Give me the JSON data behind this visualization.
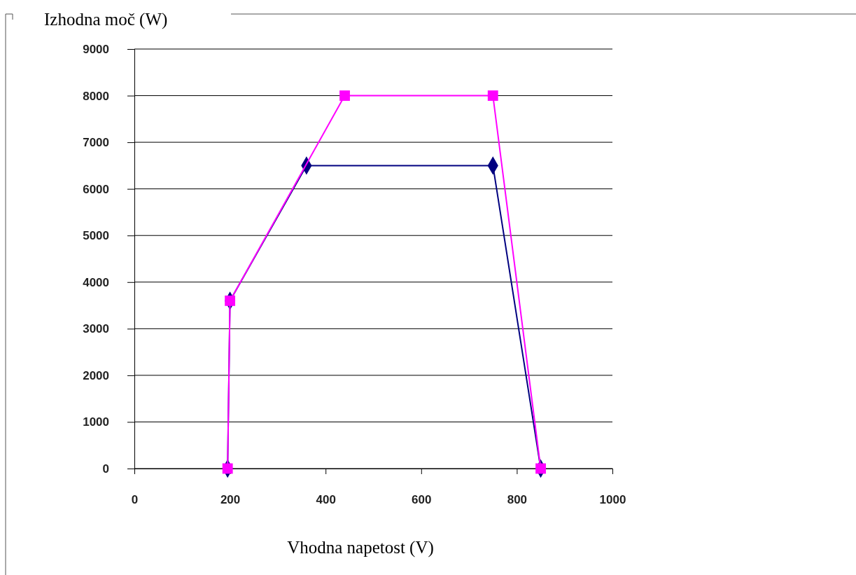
{
  "chart_data": {
    "type": "line",
    "ylabel": "Izhodna moč (W)",
    "xlabel": "Vhodna napetost (V)",
    "xlim": [
      0,
      1000
    ],
    "xticks": [
      0,
      200,
      400,
      600,
      800,
      1000
    ],
    "ylim": [
      0,
      9000
    ],
    "yticks": [
      0,
      1000,
      2000,
      3000,
      4000,
      5000,
      6000,
      7000,
      8000,
      9000
    ],
    "grid": "y",
    "series": [
      {
        "color": "#000080",
        "marker": "diamond",
        "x": [
          195,
          200,
          360,
          750,
          850
        ],
        "values": [
          0,
          3600,
          6500,
          6500,
          0
        ]
      },
      {
        "color": "#ff00ff",
        "marker": "square",
        "x": [
          195,
          200,
          440,
          750,
          850
        ],
        "values": [
          0,
          3600,
          8000,
          8000,
          0
        ]
      }
    ]
  }
}
